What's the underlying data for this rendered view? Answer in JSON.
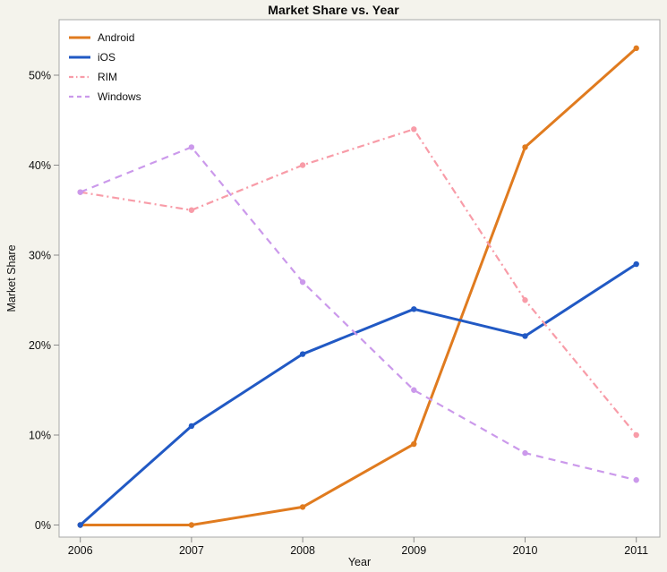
{
  "chart_data": {
    "type": "line",
    "title": "Market Share vs. Year",
    "xlabel": "Year",
    "ylabel": "Market Share",
    "x": [
      2006,
      2007,
      2008,
      2009,
      2010,
      2011
    ],
    "series": [
      {
        "name": "Android",
        "values": [
          0,
          0,
          2,
          9,
          42,
          53
        ],
        "color": "#e07b1f",
        "style": "solid"
      },
      {
        "name": "iOS",
        "values": [
          0,
          11,
          19,
          24,
          21,
          29
        ],
        "color": "#2159c4",
        "style": "solid"
      },
      {
        "name": "RIM",
        "values": [
          37,
          35,
          40,
          44,
          25,
          10
        ],
        "color": "#f89ca8",
        "style": "dashdot"
      },
      {
        "name": "Windows",
        "values": [
          37,
          42,
          27,
          15,
          8,
          5
        ],
        "color": "#cb99eb",
        "style": "dash"
      }
    ],
    "ytick_labels": [
      "0%",
      "10%",
      "20%",
      "30%",
      "40%",
      "50%"
    ],
    "ytick_values": [
      0,
      10,
      20,
      30,
      40,
      50
    ],
    "ylim": [
      0,
      55
    ],
    "xlim": [
      2006,
      2011
    ],
    "grid": false,
    "legend_position": "top-left"
  },
  "colors": {
    "background": "#f4f3ec",
    "plot_background": "#ffffff",
    "frame_border": "#a8a8a8",
    "tick_mark": "#8a8a8a",
    "text": "#111111"
  }
}
